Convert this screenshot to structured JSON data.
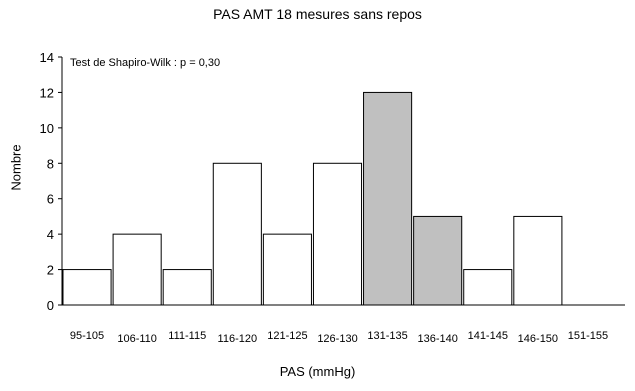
{
  "chart_data": {
    "type": "bar",
    "title": "PAS AMT 18 mesures sans repos",
    "xlabel": "PAS (mmHg)",
    "ylabel": "Nombre",
    "annotation": "Test de Shapiro-Wilk : p = 0,30",
    "categories": [
      "95-105",
      "106-110",
      "111-115",
      "116-120",
      "121-125",
      "126-130",
      "131-135",
      "136-140",
      "141-145",
      "146-150",
      "151-155"
    ],
    "values": [
      2,
      4,
      2,
      8,
      4,
      8,
      12,
      5,
      2,
      5,
      0
    ],
    "highlighted_categories": [
      "131-135",
      "136-140"
    ],
    "highlight_color": "#c0c0c0",
    "bar_color": "#ffffff",
    "ylim": [
      0,
      14
    ],
    "yticks": [
      0,
      2,
      4,
      6,
      8,
      10,
      12,
      14
    ],
    "grid": false,
    "legend": "none"
  }
}
